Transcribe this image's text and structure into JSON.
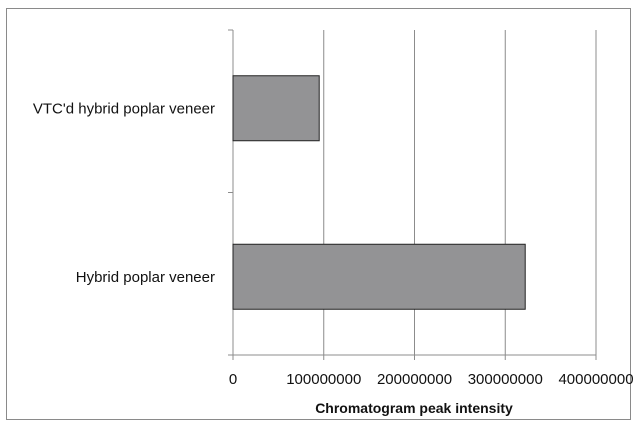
{
  "chart_data": {
    "type": "bar",
    "orientation": "horizontal",
    "categories": [
      "VTC'd hybrid poplar veneer",
      "Hybrid poplar veneer"
    ],
    "values": [
      95000000,
      322000000
    ],
    "xlabel": "Chromatogram peak intensity",
    "ylabel": "",
    "xlim": [
      0,
      400000000
    ],
    "x_ticks": [
      "0",
      "100000000",
      "200000000",
      "300000000",
      "400000000"
    ],
    "x_tick_values": [
      0,
      100000000,
      200000000,
      300000000,
      400000000
    ],
    "grid": "vertical",
    "legend": "none",
    "colors": {
      "bar_fill": "#939395",
      "bar_stroke": "#222222",
      "grid": "#8c8c8c",
      "frame": "#8a8a8a"
    }
  }
}
